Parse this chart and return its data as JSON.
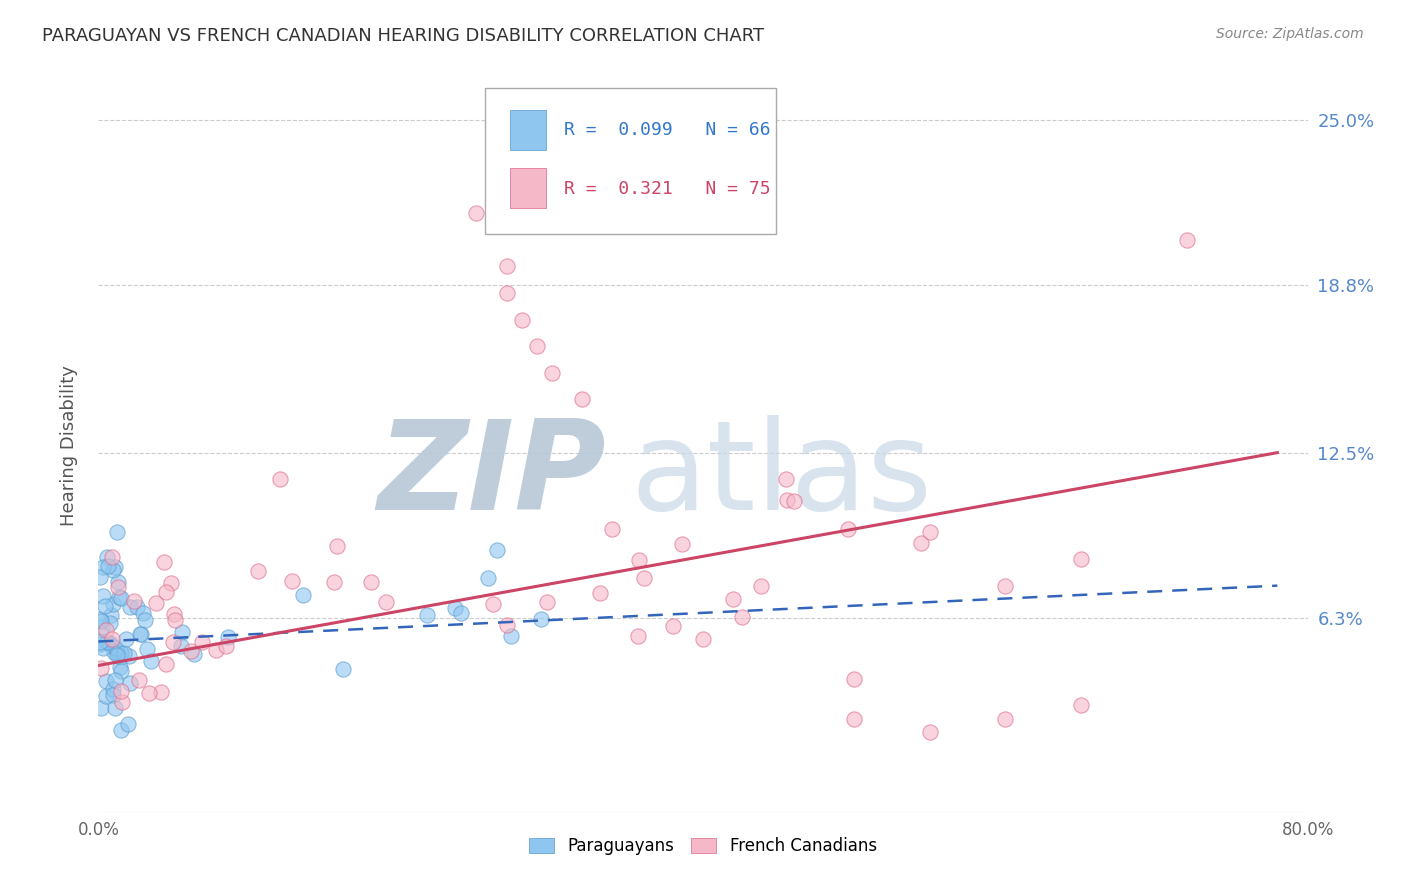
{
  "title": "PARAGUAYAN VS FRENCH CANADIAN HEARING DISABILITY CORRELATION CHART",
  "source": "Source: ZipAtlas.com",
  "ylabel": "Hearing Disability",
  "xlim": [
    0.0,
    0.8
  ],
  "ylim": [
    -0.01,
    0.265
  ],
  "ytick_vals": [
    0.063,
    0.125,
    0.188,
    0.25
  ],
  "ytick_labels": [
    "6.3%",
    "12.5%",
    "18.8%",
    "25.0%"
  ],
  "legend_blue_r": "0.099",
  "legend_blue_n": "66",
  "legend_pink_r": "0.321",
  "legend_pink_n": "75",
  "blue_color": "#8ec6f0",
  "blue_edge_color": "#5599cc",
  "pink_color": "#f5b8c8",
  "pink_edge_color": "#dd6688",
  "blue_line_color": "#3366bb",
  "pink_line_color": "#cc4466",
  "watermark_zip_color": "#c0ccd8",
  "watermark_atlas_color": "#b8ccdd",
  "background_color": "#ffffff",
  "grid_color": "#cccccc",
  "title_color": "#333333",
  "source_color": "#888888",
  "ytick_color": "#5588cc",
  "legend_text_blue": "#3377cc",
  "legend_text_pink": "#cc4466"
}
